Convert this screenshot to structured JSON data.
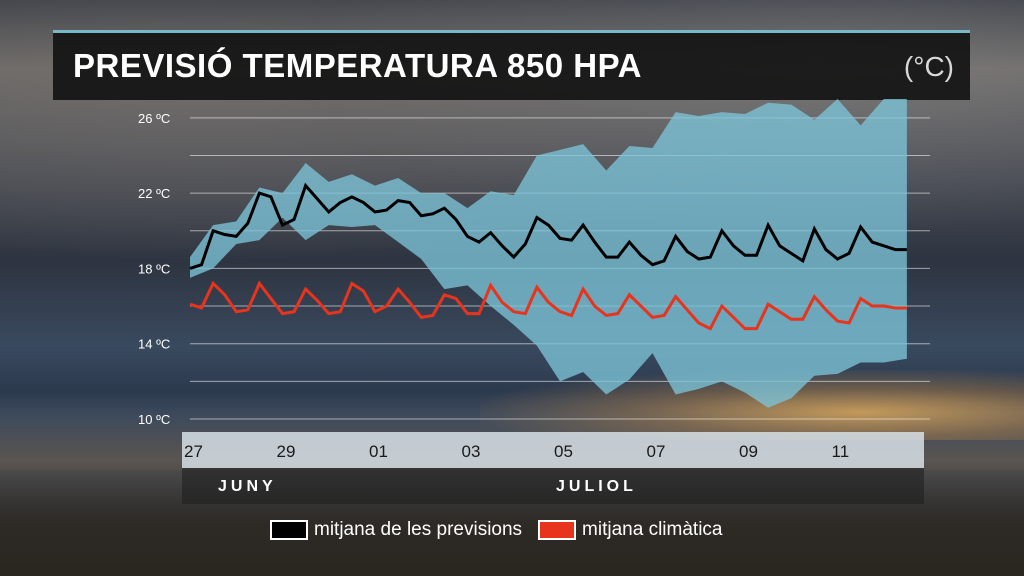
{
  "header": {
    "title": "PREVISIÓ TEMPERATURA 850 HPA",
    "unit": "(°C)"
  },
  "colors": {
    "forecast": "#000000",
    "climate": "#e8341c",
    "band": "#7cc4d8"
  },
  "chart_data": {
    "type": "line",
    "title": "PREVISIÓ TEMPERATURA 850 HPA",
    "ylabel": "(°C)",
    "ylim": [
      10,
      27
    ],
    "yticks": [
      10,
      14,
      18,
      22,
      26
    ],
    "ytick_labels": [
      "10 ºC",
      "14 ºC",
      "18 ºC",
      "22 ºC",
      "26 ºC"
    ],
    "xlim": [
      0,
      16
    ],
    "xticks": [
      0,
      2,
      4,
      6,
      8,
      10,
      12,
      14
    ],
    "xtick_labels": [
      "27",
      "29",
      "01",
      "03",
      "05",
      "07",
      "09",
      "11"
    ],
    "months": [
      {
        "label": "JUNY",
        "at": 1.9
      },
      {
        "label": "JULIOL",
        "at": 9.7
      }
    ],
    "legend": [
      {
        "label": "mitjana de les previsions",
        "color": "#000000"
      },
      {
        "label": "mitjana climàtica",
        "color": "#e8341c"
      }
    ],
    "series": [
      {
        "name": "mitjana de les previsions",
        "x": [
          0,
          0.25,
          0.5,
          0.75,
          1,
          1.25,
          1.5,
          1.75,
          2,
          2.25,
          2.5,
          2.75,
          3,
          3.25,
          3.5,
          3.75,
          4,
          4.25,
          4.5,
          4.75,
          5,
          5.25,
          5.5,
          5.75,
          6,
          6.25,
          6.5,
          6.75,
          7,
          7.25,
          7.5,
          7.75,
          8,
          8.25,
          8.5,
          8.75,
          9,
          9.25,
          9.5,
          9.75,
          10,
          10.25,
          10.5,
          10.75,
          11,
          11.25,
          11.5,
          11.75,
          12,
          12.25,
          12.5,
          12.75,
          13,
          13.25,
          13.5,
          13.75,
          14,
          14.25,
          14.5,
          14.75,
          15,
          15.25,
          15.5
        ],
        "values": [
          18.0,
          18.2,
          20.0,
          19.8,
          19.7,
          20.4,
          22.0,
          21.8,
          20.3,
          20.6,
          22.4,
          21.7,
          21.0,
          21.5,
          21.8,
          21.5,
          21.0,
          21.1,
          21.6,
          21.5,
          20.8,
          20.9,
          21.2,
          20.6,
          19.7,
          19.4,
          19.9,
          19.2,
          18.6,
          19.3,
          20.7,
          20.3,
          19.6,
          19.5,
          20.3,
          19.4,
          18.6,
          18.6,
          19.4,
          18.7,
          18.2,
          18.4,
          19.7,
          18.9,
          18.5,
          18.6,
          20.0,
          19.2,
          18.7,
          18.7,
          20.3,
          19.2,
          18.8,
          18.4,
          20.1,
          19.0,
          18.5,
          18.8,
          20.2,
          19.4,
          19.2,
          19.0,
          19.0
        ],
        "color": "#000000"
      },
      {
        "name": "mitjana climàtica",
        "x": [
          0,
          0.25,
          0.5,
          0.75,
          1,
          1.25,
          1.5,
          1.75,
          2,
          2.25,
          2.5,
          2.75,
          3,
          3.25,
          3.5,
          3.75,
          4,
          4.25,
          4.5,
          4.75,
          5,
          5.25,
          5.5,
          5.75,
          6,
          6.25,
          6.5,
          6.75,
          7,
          7.25,
          7.5,
          7.75,
          8,
          8.25,
          8.5,
          8.75,
          9,
          9.25,
          9.5,
          9.75,
          10,
          10.25,
          10.5,
          10.75,
          11,
          11.25,
          11.5,
          11.75,
          12,
          12.25,
          12.5,
          12.75,
          13,
          13.25,
          13.5,
          13.75,
          14,
          14.25,
          14.5,
          14.75,
          15,
          15.25,
          15.5
        ],
        "values": [
          16.1,
          15.9,
          17.2,
          16.6,
          15.7,
          15.8,
          17.2,
          16.4,
          15.6,
          15.7,
          16.9,
          16.3,
          15.6,
          15.7,
          17.2,
          16.8,
          15.7,
          16.0,
          16.9,
          16.2,
          15.4,
          15.5,
          16.6,
          16.4,
          15.6,
          15.6,
          17.1,
          16.2,
          15.7,
          15.6,
          17.0,
          16.2,
          15.7,
          15.5,
          16.9,
          16.0,
          15.5,
          15.6,
          16.6,
          16.0,
          15.4,
          15.5,
          16.5,
          15.8,
          15.1,
          14.8,
          16.0,
          15.4,
          14.8,
          14.8,
          16.1,
          15.7,
          15.3,
          15.3,
          16.5,
          15.8,
          15.2,
          15.1,
          16.4,
          16.0,
          16.0,
          15.9,
          15.9
        ],
        "color": "#e8341c"
      }
    ],
    "band": {
      "x": [
        0,
        0.5,
        1,
        1.5,
        2,
        2.5,
        3,
        3.5,
        4,
        4.5,
        5,
        5.5,
        6,
        6.5,
        7,
        7.5,
        8,
        8.5,
        9,
        9.5,
        10,
        10.5,
        11,
        11.5,
        12,
        12.5,
        13,
        13.5,
        14,
        14.5,
        15,
        15.5
      ],
      "upper": [
        18.6,
        20.3,
        20.5,
        22.3,
        22.0,
        23.6,
        22.6,
        23.0,
        22.4,
        22.8,
        22.0,
        22.0,
        21.2,
        22.1,
        21.9,
        24.0,
        24.3,
        24.6,
        23.2,
        24.5,
        24.4,
        26.3,
        26.1,
        26.3,
        26.2,
        26.8,
        26.7,
        25.9,
        27.0,
        25.6,
        27.0,
        27.0
      ],
      "lower": [
        17.5,
        18.0,
        19.3,
        19.5,
        20.7,
        19.5,
        20.3,
        20.2,
        20.3,
        19.4,
        18.5,
        16.9,
        17.1,
        16.0,
        15.0,
        13.9,
        12.0,
        12.5,
        11.3,
        12.1,
        13.5,
        11.3,
        11.6,
        12.0,
        11.4,
        10.6,
        11.1,
        12.3,
        12.4,
        13.0,
        13.0,
        13.2
      ],
      "color": "#7cc4d8"
    }
  }
}
